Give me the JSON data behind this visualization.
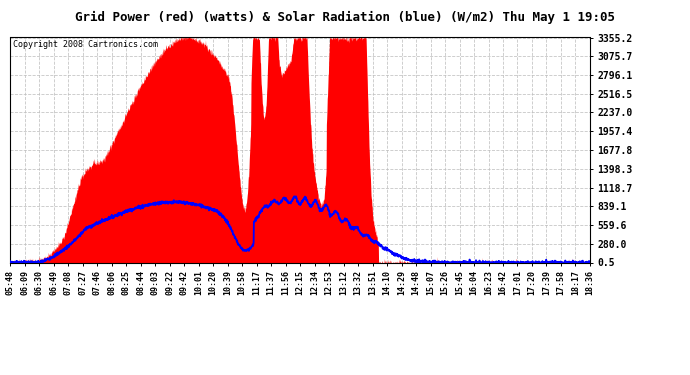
{
  "title": "Grid Power (red) (watts) & Solar Radiation (blue) (W/m2) Thu May 1 19:05",
  "copyright": "Copyright 2008 Cartronics.com",
  "bg_color": "#ffffff",
  "plot_bg_color": "#ffffff",
  "grid_color": "#c0c0c0",
  "red_color": "#ff0000",
  "blue_color": "#0000ff",
  "yticks": [
    0.5,
    280.0,
    559.6,
    839.1,
    1118.7,
    1398.3,
    1677.8,
    1957.4,
    2237.0,
    2516.5,
    2796.1,
    3075.7,
    3355.2
  ],
  "ylim": [
    0.5,
    3355.2
  ],
  "xtick_labels": [
    "05:48",
    "06:09",
    "06:30",
    "06:49",
    "07:08",
    "07:27",
    "07:46",
    "08:06",
    "08:25",
    "08:44",
    "09:03",
    "09:22",
    "09:42",
    "10:01",
    "10:20",
    "10:39",
    "10:58",
    "11:17",
    "11:37",
    "11:56",
    "12:15",
    "12:34",
    "12:53",
    "13:12",
    "13:32",
    "13:51",
    "14:10",
    "14:29",
    "14:48",
    "15:07",
    "15:26",
    "15:45",
    "16:04",
    "16:23",
    "16:42",
    "17:01",
    "17:20",
    "17:39",
    "17:58",
    "18:17",
    "18:36"
  ],
  "n_xticks": 41,
  "figsize": [
    6.9,
    3.75
  ],
  "dpi": 100
}
